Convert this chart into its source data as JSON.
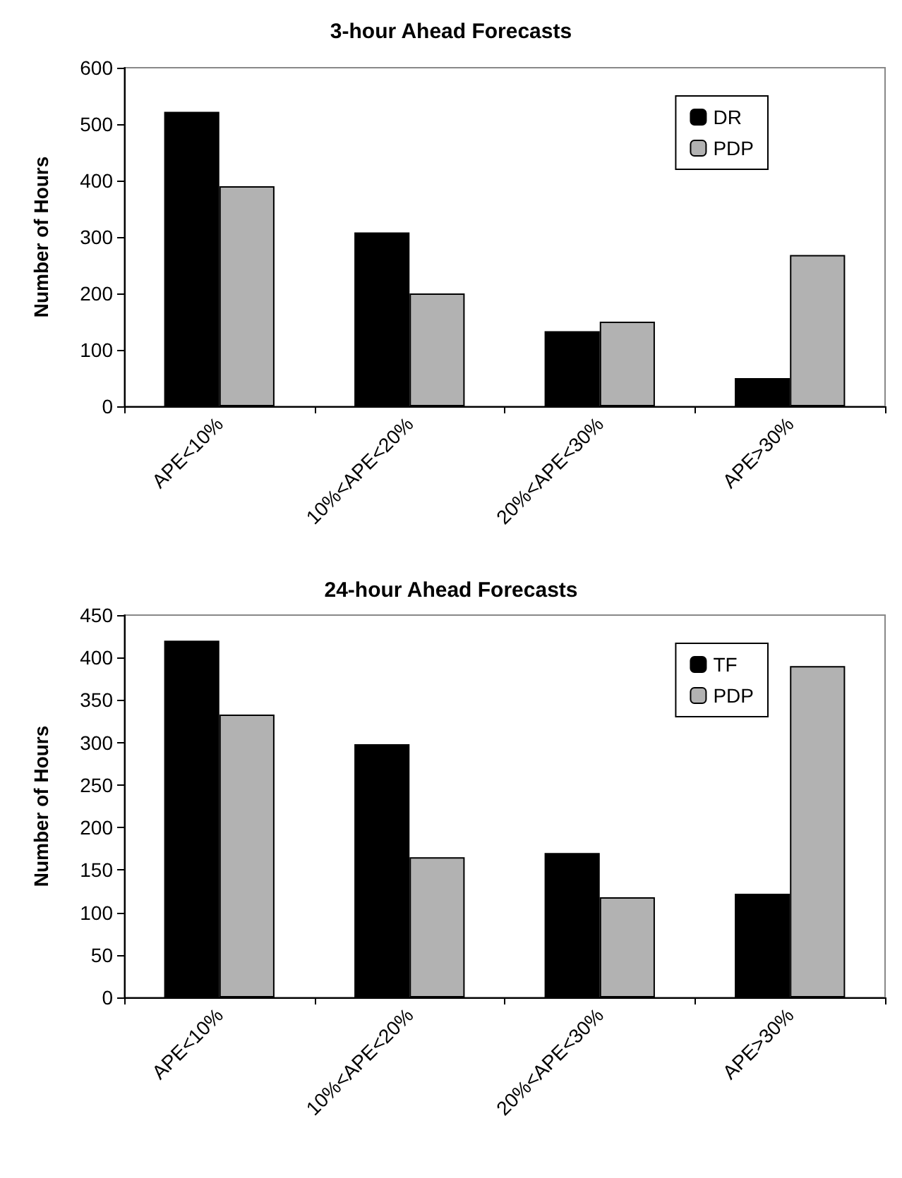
{
  "chart_data": [
    {
      "type": "bar",
      "title": "3-hour Ahead Forecasts",
      "ylabel": "Number of Hours",
      "categories": [
        "APE<10%",
        "10%<APE<20%",
        "20%<APE<30%",
        "APE>30%"
      ],
      "series": [
        {
          "name": "DR",
          "color": "#000000",
          "values": [
            522,
            308,
            133,
            50
          ]
        },
        {
          "name": "PDP",
          "color": "#b2b2b2",
          "values": [
            390,
            200,
            150,
            268
          ]
        }
      ],
      "ylim": [
        0,
        600
      ],
      "yticks": [
        0,
        100,
        200,
        300,
        400,
        500,
        600
      ],
      "grid": false,
      "legend": "top right"
    },
    {
      "type": "bar",
      "title": "24-hour Ahead Forecasts",
      "ylabel": "Number of Hours",
      "categories": [
        "APE<10%",
        "10%<APE<20%",
        "20%<APE<30%",
        "APE>30%"
      ],
      "series": [
        {
          "name": "TF",
          "color": "#000000",
          "values": [
            420,
            298,
            170,
            122
          ]
        },
        {
          "name": "PDP",
          "color": "#b2b2b2",
          "values": [
            333,
            165,
            118,
            390
          ]
        }
      ],
      "ylim": [
        0,
        450
      ],
      "yticks": [
        0,
        50,
        100,
        150,
        200,
        250,
        300,
        350,
        400,
        450
      ],
      "grid": false,
      "legend": "top right"
    }
  ]
}
